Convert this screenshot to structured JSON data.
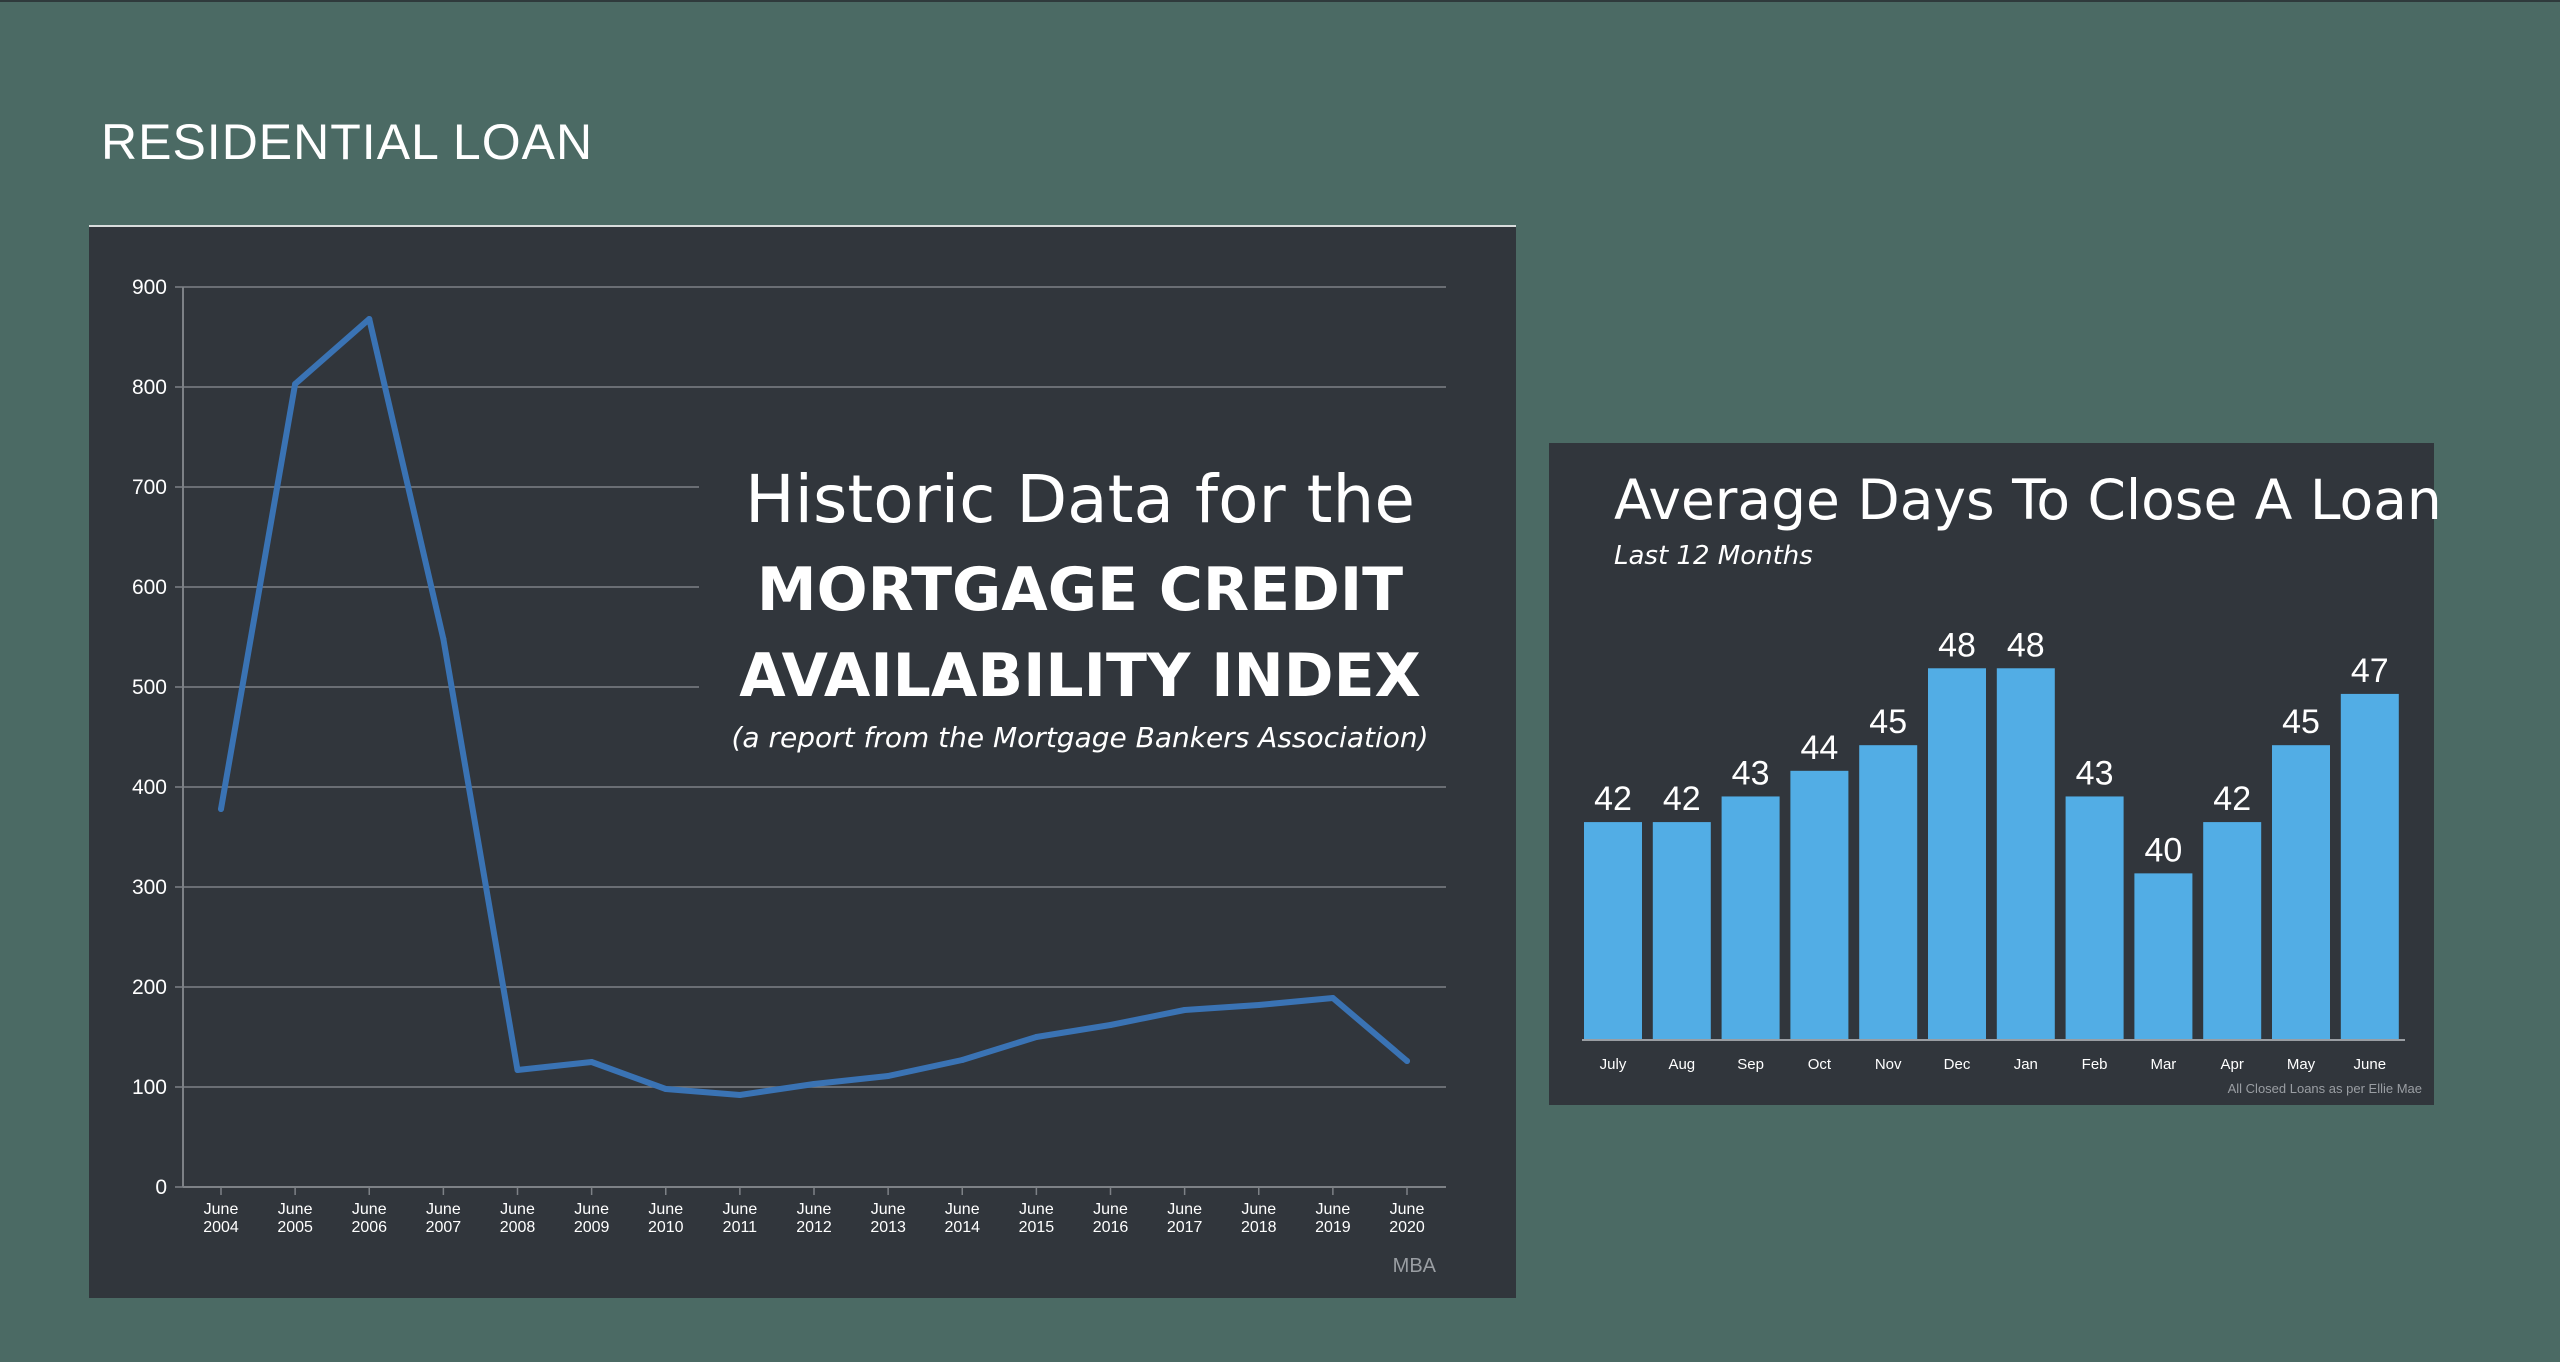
{
  "page": {
    "title": "RESIDENTIAL LOAN"
  },
  "colors": {
    "background": "#4b6a64",
    "panel": "#31363c",
    "line": "#3a73b4",
    "bar": "#52ade5",
    "grid": "#7d8186",
    "text": "#ffffff"
  },
  "mcai": {
    "heading_line1": "Historic Data for the",
    "heading_line2": "MORTGAGE CREDIT",
    "heading_line3": "AVAILABILITY INDEX",
    "subtitle": "(a report from the Mortgage Bankers Association)",
    "source": "MBA"
  },
  "days_to_close": {
    "title": "Average Days To Close A Loan",
    "subtitle": "Last 12 Months",
    "source": "All Closed Loans as per Ellie Mae"
  },
  "chart_data": [
    {
      "type": "line",
      "title": "",
      "xlabel": "",
      "ylabel": "",
      "ylim": [
        0,
        900
      ],
      "yticks": [
        0,
        100,
        200,
        300,
        400,
        500,
        600,
        700,
        800,
        900
      ],
      "grid": true,
      "categories": [
        [
          "June",
          "2004"
        ],
        [
          "June",
          "2005"
        ],
        [
          "June",
          "2006"
        ],
        [
          "June",
          "2007"
        ],
        [
          "June",
          "2008"
        ],
        [
          "June",
          "2009"
        ],
        [
          "June",
          "2010"
        ],
        [
          "June",
          "2011"
        ],
        [
          "June",
          "2012"
        ],
        [
          "June",
          "2013"
        ],
        [
          "June",
          "2014"
        ],
        [
          "June",
          "2015"
        ],
        [
          "June",
          "2016"
        ],
        [
          "June",
          "2017"
        ],
        [
          "June",
          "2018"
        ],
        [
          "June",
          "2019"
        ],
        [
          "June",
          "2020"
        ]
      ],
      "values": [
        378,
        803,
        868,
        548,
        117,
        125,
        98,
        92,
        103,
        111,
        127,
        150,
        162,
        177,
        182,
        189,
        126
      ]
    },
    {
      "type": "bar",
      "title": "",
      "categories": [
        "July",
        "Aug",
        "Sep",
        "Oct",
        "Nov",
        "Dec",
        "Jan",
        "Feb",
        "Mar",
        "Apr",
        "May",
        "June"
      ],
      "values": [
        42,
        42,
        43,
        44,
        45,
        48,
        48,
        43,
        40,
        42,
        45,
        47
      ],
      "ylim": [
        33.5,
        50
      ],
      "data_labels": true,
      "grid": false
    }
  ]
}
